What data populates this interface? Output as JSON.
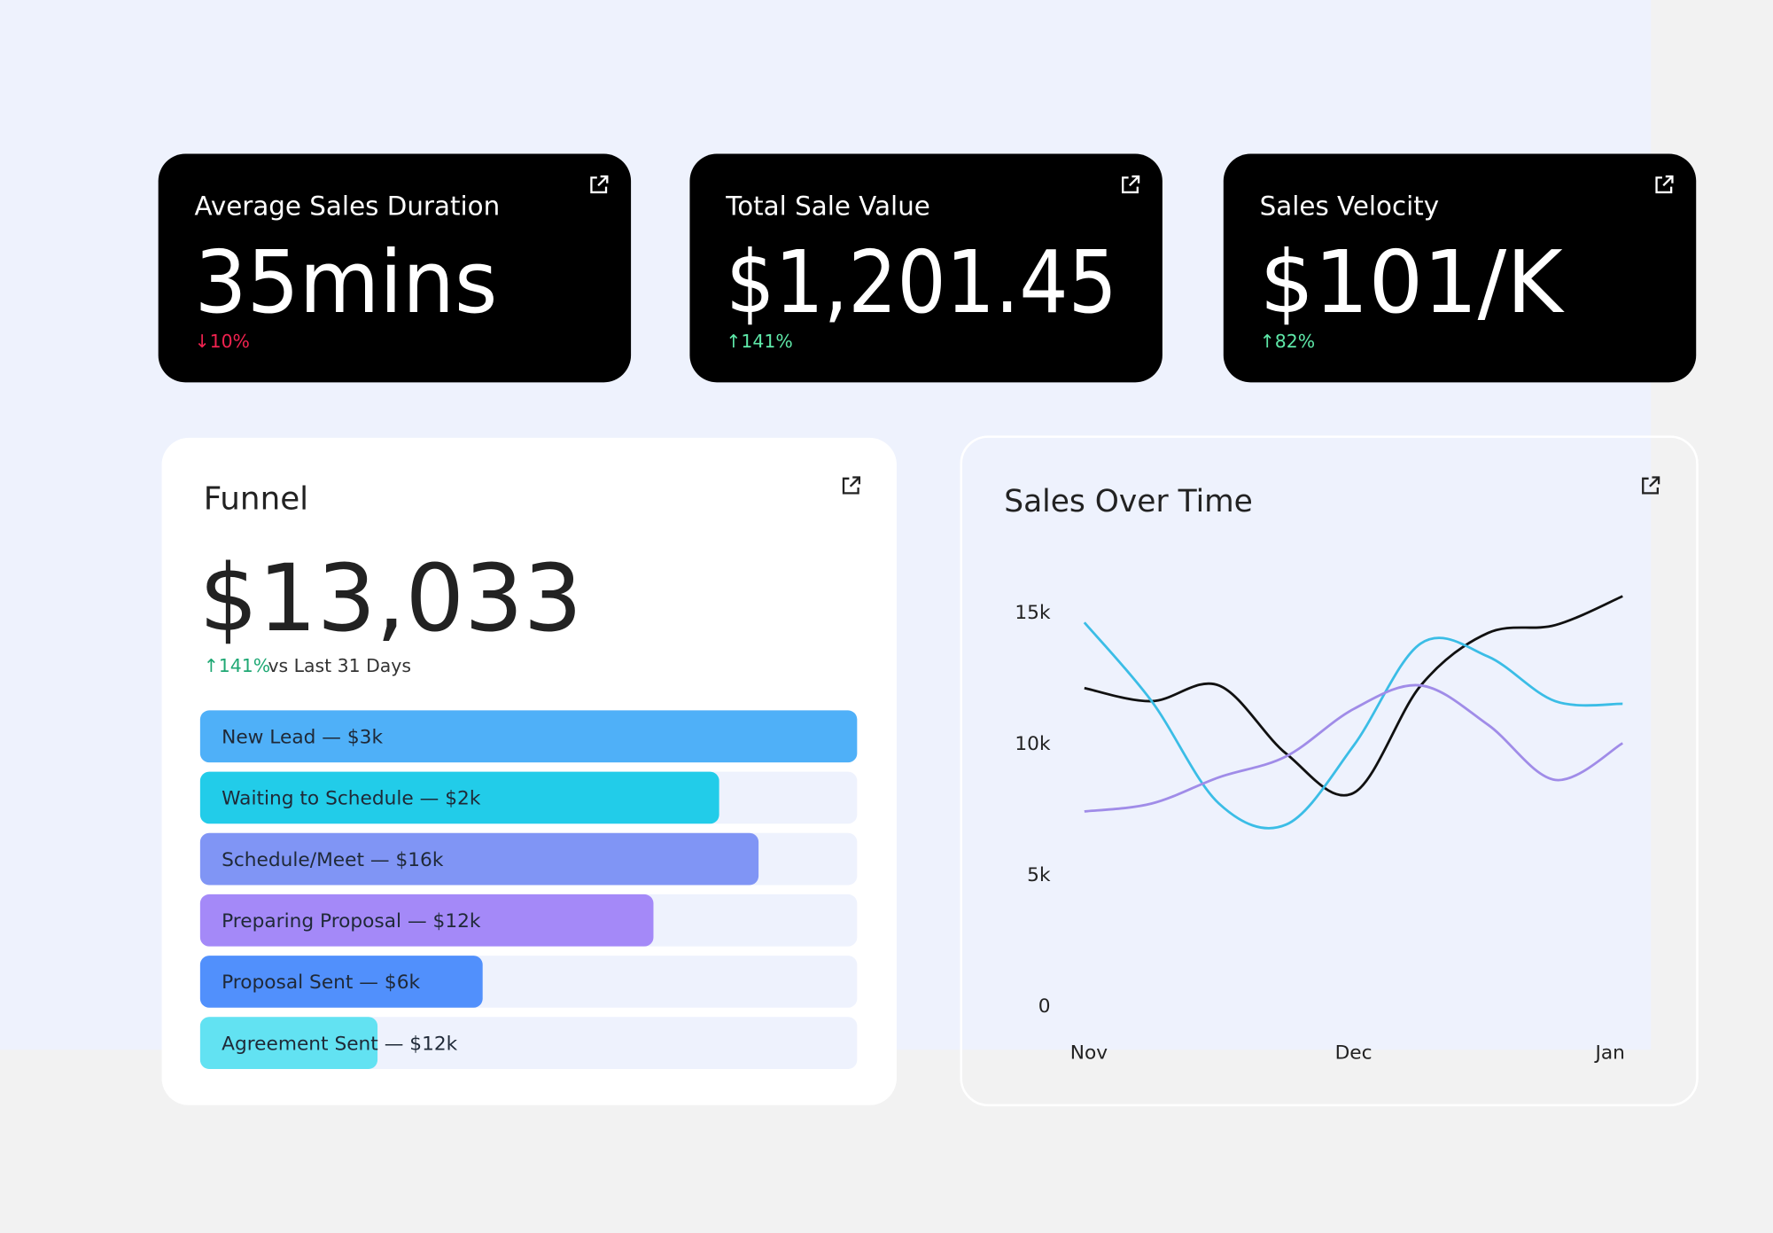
{
  "kpis": [
    {
      "title": "Average Sales Duration",
      "value": "35mins",
      "delta": "↓10%",
      "delta_color": "#f0224f"
    },
    {
      "title": "Total Sale Value",
      "value": "$1,201.45",
      "delta": "↑141%",
      "delta_color": "#5ee8a8"
    },
    {
      "title": "Sales Velocity",
      "value": "$101/K",
      "delta": "↑82%",
      "delta_color": "#5ee8a8"
    }
  ],
  "funnel": {
    "title": "Funnel",
    "value": "$13,033",
    "delta": "↑141%",
    "delta_note": "vs Last 31 Days",
    "stages": [
      {
        "label": "New Lead  —  $3k",
        "fill": 100,
        "color": "#4fb0f8"
      },
      {
        "label": "Waiting to Schedule  —  $2k",
        "fill": 79,
        "color": "#22cce9"
      },
      {
        "label": "Schedule/Meet  —  $16k",
        "fill": 85,
        "color": "#8095f5"
      },
      {
        "label": "Preparing Proposal  —  $12k",
        "fill": 69,
        "color": "#a489f8"
      },
      {
        "label": "Proposal Sent  —  $6k",
        "fill": 43,
        "color": "#5190fc"
      },
      {
        "label": "Agreement Sent  —  $12k",
        "fill": 27,
        "color": "#62e2f2"
      }
    ]
  },
  "chart_data": {
    "type": "line",
    "title": "Sales Over Time",
    "x": [
      0,
      0.25,
      0.5,
      0.75,
      1,
      1.25,
      1.5,
      1.75,
      2
    ],
    "xlim": [
      0,
      2
    ],
    "xticks": [
      {
        "value": 0,
        "label": "Nov"
      },
      {
        "value": 1,
        "label": "Dec"
      },
      {
        "value": 2,
        "label": "Jan"
      }
    ],
    "ylim": [
      0,
      15000
    ],
    "yticks": [
      {
        "value": 0,
        "label": "0"
      },
      {
        "value": 5000,
        "label": "5k"
      },
      {
        "value": 10000,
        "label": "10k"
      },
      {
        "value": 15000,
        "label": "15k"
      }
    ],
    "series": [
      {
        "color": "#111111",
        "values": [
          12100,
          11600,
          12200,
          9600,
          8100,
          12200,
          14200,
          14500,
          15600
        ]
      },
      {
        "color": "#3bbde6",
        "values": [
          14600,
          11600,
          7700,
          6900,
          9900,
          13800,
          13300,
          11600,
          11500
        ]
      },
      {
        "color": "#a08ce8",
        "values": [
          7400,
          7700,
          8700,
          9500,
          11300,
          12200,
          10700,
          8600,
          10000
        ]
      }
    ]
  }
}
